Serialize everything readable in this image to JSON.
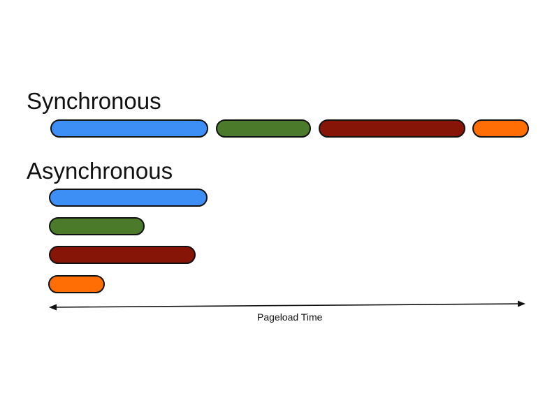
{
  "sections": {
    "sync_title": "Synchronous",
    "async_title": "Asynchronous"
  },
  "axis": {
    "label": "Pageload Time"
  },
  "colors": {
    "blue": "#3d8ff5",
    "green": "#4a7a2a",
    "dark_red": "#861407",
    "orange": "#ff6e05",
    "outline": "#111111"
  },
  "resources": [
    {
      "color": "blue"
    },
    {
      "color": "green"
    },
    {
      "color": "dark_red"
    },
    {
      "color": "orange"
    }
  ]
}
